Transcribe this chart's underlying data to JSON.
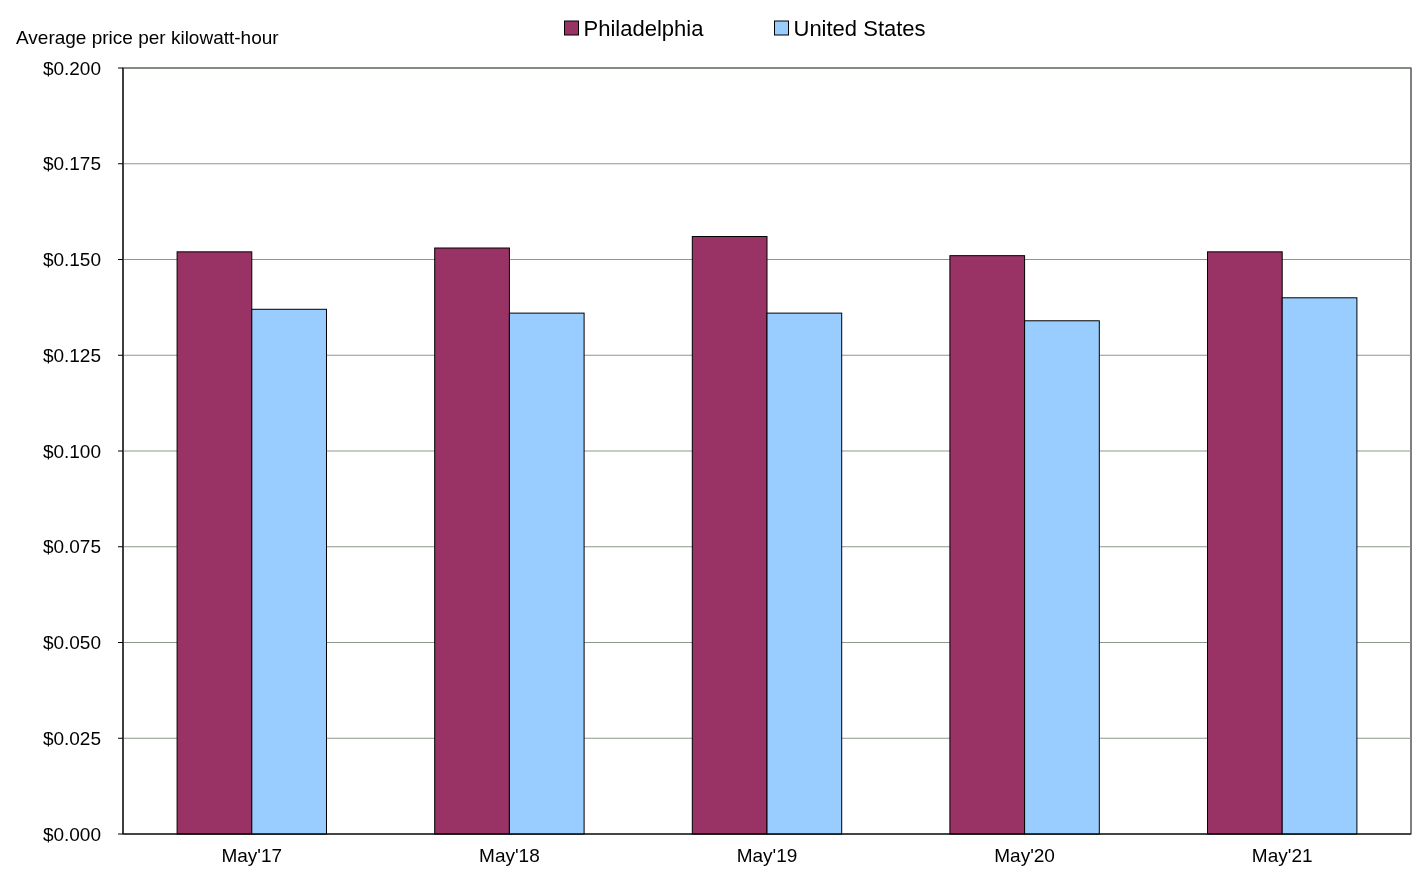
{
  "chart_data": {
    "type": "bar",
    "ylabel": "Average price per kilowatt-hour",
    "categories": [
      "May'17",
      "May'18",
      "May'19",
      "May'20",
      "May'21"
    ],
    "series": [
      {
        "name": "Philadelphia",
        "color": "#993366",
        "values": [
          0.152,
          0.153,
          0.156,
          0.151,
          0.152
        ]
      },
      {
        "name": "United States",
        "color": "#99ccff",
        "values": [
          0.137,
          0.136,
          0.136,
          0.134,
          0.14
        ]
      }
    ],
    "ylim": [
      0,
      0.2
    ],
    "yticks": [
      {
        "value": 0,
        "label": "$0.000"
      },
      {
        "value": 0.025,
        "label": "$0.025"
      },
      {
        "value": 0.05,
        "label": "$0.050"
      },
      {
        "value": 0.075,
        "label": "$0.075"
      },
      {
        "value": 0.1,
        "label": "$0.100"
      },
      {
        "value": 0.125,
        "label": "$0.125"
      },
      {
        "value": 0.15,
        "label": "$0.150"
      },
      {
        "value": 0.175,
        "label": "$0.175"
      },
      {
        "value": 0.2,
        "label": "$0.200"
      }
    ],
    "grid": "y",
    "legend": "top"
  }
}
